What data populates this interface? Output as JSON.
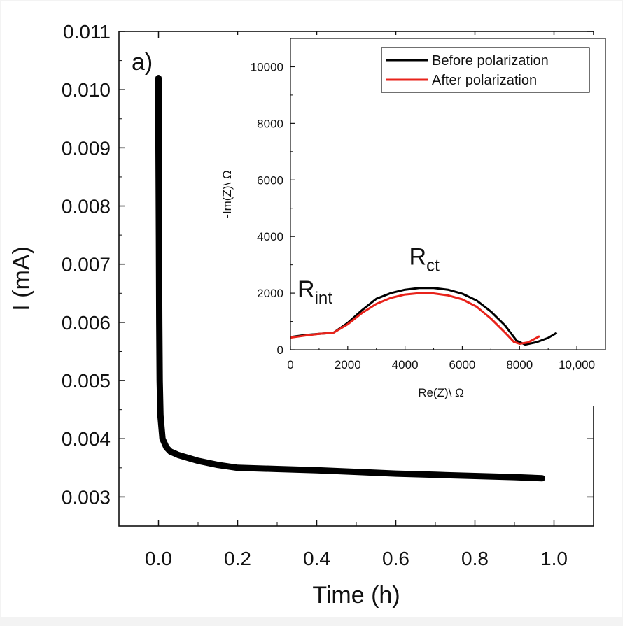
{
  "chart_data": [
    {
      "type": "line",
      "panel_label": "a)",
      "xlabel": "Time (h)",
      "ylabel": "I (mA)",
      "xlim": [
        -0.1,
        1.1
      ],
      "ylim": [
        0.0025,
        0.011
      ],
      "xticks": [
        0.0,
        0.2,
        0.4,
        0.6,
        0.8,
        1.0
      ],
      "xtick_labels": [
        "0.0",
        "0.2",
        "0.4",
        "0.6",
        "0.8",
        "1.0"
      ],
      "yticks": [
        0.003,
        0.004,
        0.005,
        0.006,
        0.007,
        0.008,
        0.009,
        0.01,
        0.011
      ],
      "ytick_labels": [
        "0.003",
        "0.004",
        "0.005",
        "0.006",
        "0.007",
        "0.008",
        "0.009",
        "0.010",
        "0.011"
      ],
      "series": [
        {
          "color": "#000000",
          "x": [
            0.0,
            0.0,
            0.001,
            0.002,
            0.003,
            0.005,
            0.01,
            0.02,
            0.03,
            0.05,
            0.08,
            0.1,
            0.15,
            0.2,
            0.3,
            0.4,
            0.5,
            0.6,
            0.7,
            0.8,
            0.9,
            0.97
          ],
          "y": [
            0.0102,
            0.009,
            0.0075,
            0.006,
            0.005,
            0.0044,
            0.004,
            0.00385,
            0.00378,
            0.00372,
            0.00366,
            0.00362,
            0.00355,
            0.0035,
            0.00348,
            0.00346,
            0.00343,
            0.0034,
            0.00338,
            0.00336,
            0.00334,
            0.00332
          ]
        }
      ]
    },
    {
      "type": "line",
      "xlabel": "Re(Z)\\ Ω",
      "ylabel": "-Im(Z)\\ Ω",
      "xlim": [
        0,
        11000
      ],
      "ylim": [
        0,
        11000
      ],
      "xticks": [
        0,
        2000,
        4000,
        6000,
        8000,
        10000
      ],
      "xtick_labels": [
        "0",
        "2000",
        "4000",
        "6000",
        "8000",
        "10,000"
      ],
      "yticks": [
        0,
        2000,
        4000,
        6000,
        8000,
        10000
      ],
      "ytick_labels": [
        "0",
        "2000",
        "4000",
        "6000",
        "8000",
        "10000"
      ],
      "legend_position": "top-right",
      "annotations": [
        {
          "base": "R",
          "sub": "int",
          "x": 0,
          "y": 1850
        },
        {
          "base": "R",
          "sub": "ct",
          "x": 3900,
          "y": 3000
        }
      ],
      "series": [
        {
          "name": "Before polarization",
          "color": "#000000",
          "x": [
            0,
            500,
            1000,
            1500,
            2000,
            2500,
            3000,
            3500,
            4000,
            4500,
            5000,
            5500,
            6000,
            6500,
            7000,
            7500,
            7900,
            8200,
            8600,
            9000,
            9300
          ],
          "y": [
            450,
            520,
            560,
            600,
            950,
            1400,
            1800,
            2000,
            2120,
            2180,
            2180,
            2120,
            1980,
            1740,
            1350,
            850,
            320,
            180,
            270,
            420,
            600
          ]
        },
        {
          "name": "After polarization",
          "color": "#e8231b",
          "x": [
            0,
            500,
            1000,
            1500,
            2000,
            2500,
            3000,
            3500,
            4000,
            4500,
            5000,
            5500,
            6000,
            6500,
            7000,
            7500,
            7800,
            8000,
            8300,
            8700
          ],
          "y": [
            430,
            500,
            560,
            600,
            900,
            1300,
            1620,
            1830,
            1950,
            2000,
            1990,
            1920,
            1780,
            1520,
            1100,
            600,
            280,
            210,
            260,
            480
          ]
        }
      ]
    }
  ]
}
